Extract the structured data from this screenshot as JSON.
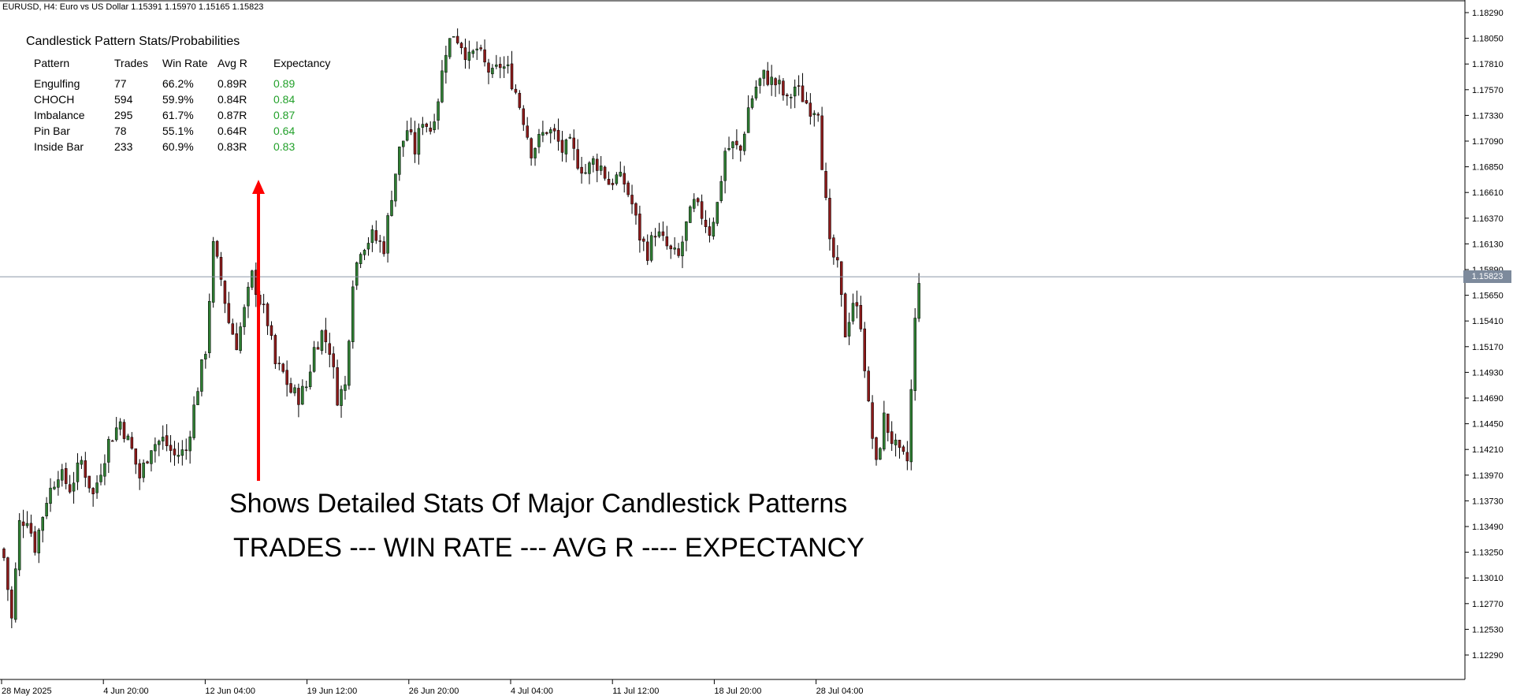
{
  "header": {
    "symbol_line": "EURUSD, H4:  Euro vs US Dollar  1.15391 1.15970 1.15165 1.15823"
  },
  "stats_panel": {
    "title": "Candlestick Pattern Stats/Probabilities",
    "columns": [
      "Pattern",
      "Trades",
      "Win Rate",
      "Avg R",
      "Expectancy"
    ],
    "rows": [
      {
        "pattern": "Engulfing",
        "trades": "77",
        "win_rate": "66.2%",
        "avg_r": "0.89R",
        "expectancy": "0.89"
      },
      {
        "pattern": "CHOCH",
        "trades": "594",
        "win_rate": "59.9%",
        "avg_r": "0.84R",
        "expectancy": "0.84"
      },
      {
        "pattern": "Imbalance",
        "trades": "295",
        "win_rate": "61.7%",
        "avg_r": "0.87R",
        "expectancy": "0.87"
      },
      {
        "pattern": "Pin Bar",
        "trades": "78",
        "win_rate": "55.1%",
        "avg_r": "0.64R",
        "expectancy": "0.64"
      },
      {
        "pattern": "Inside Bar",
        "trades": "233",
        "win_rate": "60.9%",
        "avg_r": "0.83R",
        "expectancy": "0.83"
      }
    ],
    "expectancy_color": "#22a02a"
  },
  "annotation": {
    "line1": "Shows Detailed Stats Of Major Candlestick Patterns",
    "line2": "TRADES --- WIN RATE --- AVG R ---- EXPECTANCY",
    "arrow_color": "#ff0000"
  },
  "current_price": {
    "label": "1.15823",
    "value": 1.15823,
    "badge_color": "#7d8a9c"
  },
  "chart_data": {
    "type": "candlestick",
    "y_ticks": [
      "1.18290",
      "1.18050",
      "1.17810",
      "1.17570",
      "1.17330",
      "1.17090",
      "1.16850",
      "1.16610",
      "1.16370",
      "1.16130",
      "1.15890",
      "1.15650",
      "1.15410",
      "1.15170",
      "1.14930",
      "1.14690",
      "1.14450",
      "1.14210",
      "1.13970",
      "1.13730",
      "1.13490",
      "1.13250",
      "1.13010",
      "1.12770",
      "1.12530",
      "1.12290"
    ],
    "x_ticks": [
      "28 May 2025",
      "4 Jun 20:00",
      "12 Jun 04:00",
      "19 Jun 12:00",
      "26 Jun 20:00",
      "4 Jul 04:00",
      "11 Jul 12:00",
      "18 Jul 20:00",
      "28 Jul 04:00"
    ],
    "ylim": [
      1.1217,
      1.1834
    ],
    "bull_color": "#2e7d32",
    "bear_color": "#8b1a1a",
    "anchors": [
      [
        0,
        1.132
      ],
      [
        2,
        1.1262
      ],
      [
        4,
        1.1352
      ],
      [
        6,
        1.1358
      ],
      [
        8,
        1.133
      ],
      [
        11,
        1.1375
      ],
      [
        14,
        1.14
      ],
      [
        17,
        1.1385
      ],
      [
        20,
        1.141
      ],
      [
        23,
        1.1378
      ],
      [
        27,
        1.1428
      ],
      [
        30,
        1.1447
      ],
      [
        33,
        1.142
      ],
      [
        35,
        1.1395
      ],
      [
        38,
        1.1425
      ],
      [
        41,
        1.143
      ],
      [
        44,
        1.1415
      ],
      [
        47,
        1.142
      ],
      [
        50,
        1.148
      ],
      [
        52,
        1.1515
      ],
      [
        54,
        1.161
      ],
      [
        56,
        1.158
      ],
      [
        58,
        1.154
      ],
      [
        60,
        1.152
      ],
      [
        62,
        1.155
      ],
      [
        64,
        1.1583
      ],
      [
        66,
        1.156
      ],
      [
        68,
        1.154
      ],
      [
        70,
        1.15
      ],
      [
        72,
        1.1492
      ],
      [
        74,
        1.1475
      ],
      [
        76,
        1.147
      ],
      [
        78,
        1.148
      ],
      [
        80,
        1.1515
      ],
      [
        82,
        1.153
      ],
      [
        84,
        1.1515
      ],
      [
        86,
        1.147
      ],
      [
        88,
        1.148
      ],
      [
        90,
        1.158
      ],
      [
        92,
        1.161
      ],
      [
        95,
        1.162
      ],
      [
        98,
        1.161
      ],
      [
        100,
        1.166
      ],
      [
        102,
        1.17
      ],
      [
        104,
        1.172
      ],
      [
        106,
        1.17
      ],
      [
        108,
        1.173
      ],
      [
        110,
        1.172
      ],
      [
        112,
        1.175
      ],
      [
        114,
        1.1795
      ],
      [
        116,
        1.181
      ],
      [
        118,
        1.18
      ],
      [
        120,
        1.1785
      ],
      [
        122,
        1.1795
      ],
      [
        124,
        1.178
      ],
      [
        126,
        1.177
      ],
      [
        128,
        1.178
      ],
      [
        130,
        1.1775
      ],
      [
        132,
        1.1755
      ],
      [
        134,
        1.173
      ],
      [
        136,
        1.17
      ],
      [
        138,
        1.171
      ],
      [
        140,
        1.172
      ],
      [
        142,
        1.1715
      ],
      [
        144,
        1.17
      ],
      [
        146,
        1.1705
      ],
      [
        148,
        1.169
      ],
      [
        150,
        1.168
      ],
      [
        152,
        1.169
      ],
      [
        154,
        1.1685
      ],
      [
        156,
        1.167
      ],
      [
        158,
        1.1675
      ],
      [
        160,
        1.167
      ],
      [
        162,
        1.165
      ],
      [
        164,
        1.162
      ],
      [
        166,
        1.1605
      ],
      [
        168,
        1.1625
      ],
      [
        170,
        1.1615
      ],
      [
        172,
        1.1605
      ],
      [
        174,
        1.16
      ],
      [
        176,
        1.163
      ],
      [
        178,
        1.165
      ],
      [
        180,
        1.164
      ],
      [
        182,
        1.1625
      ],
      [
        184,
        1.165
      ],
      [
        186,
        1.17
      ],
      [
        188,
        1.1705
      ],
      [
        190,
        1.17
      ],
      [
        192,
        1.174
      ],
      [
        194,
        1.176
      ],
      [
        196,
        1.177
      ],
      [
        198,
        1.1765
      ],
      [
        200,
        1.176
      ],
      [
        202,
        1.1745
      ],
      [
        204,
        1.176
      ],
      [
        206,
        1.175
      ],
      [
        208,
        1.174
      ],
      [
        210,
        1.174
      ],
      [
        211,
        1.169
      ],
      [
        213,
        1.161
      ],
      [
        215,
        1.159
      ],
      [
        217,
        1.153
      ],
      [
        219,
        1.156
      ],
      [
        221,
        1.154
      ],
      [
        223,
        1.146
      ],
      [
        225,
        1.1405
      ],
      [
        227,
        1.145
      ],
      [
        229,
        1.143
      ],
      [
        231,
        1.1415
      ],
      [
        233,
        1.141
      ],
      [
        235,
        1.154
      ],
      [
        236,
        1.1582
      ]
    ]
  }
}
